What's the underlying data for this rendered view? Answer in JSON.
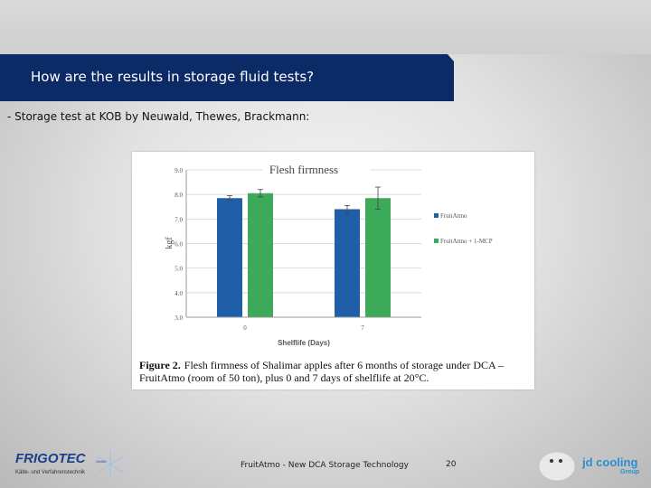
{
  "slide": {
    "title": "How are the results in storage fluid tests?",
    "subtitle": "- Storage test at KOB by  Neuwald, Thewes, Brackmann:",
    "footer": "FruitAtmo - New DCA Storage Technology",
    "page_number": "20",
    "colors": {
      "title_bar": "#0b2a66",
      "fruitatmo": "#1f5fa8",
      "fruitatmo_mcp": "#3daa5a"
    }
  },
  "logos": {
    "left": {
      "name": "FrigoTec",
      "brand": "FRIGOTEC",
      "suffix": "GmbH",
      "tagline": "Kälte- und Verfahrenstechnik"
    },
    "right": {
      "name": "jd cooling Group",
      "brand": "jd cooling",
      "group": "Group"
    }
  },
  "chart_data": {
    "type": "bar",
    "title": "Flesh firmness",
    "ylabel": "kgf",
    "xlabel": "Shelflife (Days)",
    "categories": [
      "0",
      "7"
    ],
    "ylim": [
      3.0,
      9.0
    ],
    "yticks": [
      "3.0",
      "4.0",
      "5.0",
      "6.0",
      "7.0",
      "8.0",
      "9.0"
    ],
    "series": [
      {
        "name": "FruitAtmo",
        "values": [
          7.85,
          7.4
        ],
        "errors": [
          0.1,
          0.15
        ],
        "color": "#1f5fa8"
      },
      {
        "name": "FruitAtmo + 1-MCP",
        "values": [
          8.05,
          7.85
        ],
        "errors": [
          0.15,
          0.45
        ],
        "color": "#3daa5a"
      }
    ],
    "grid": true,
    "legend": "right",
    "caption_label": "Figure 2.",
    "caption_line1": "Flesh firmness of Shalimar apples after 6 months of storage under DCA –",
    "caption_line2": "FruitAtmo (room of 50 ton), plus 0 and 7 days of shelflife at 20°C."
  }
}
